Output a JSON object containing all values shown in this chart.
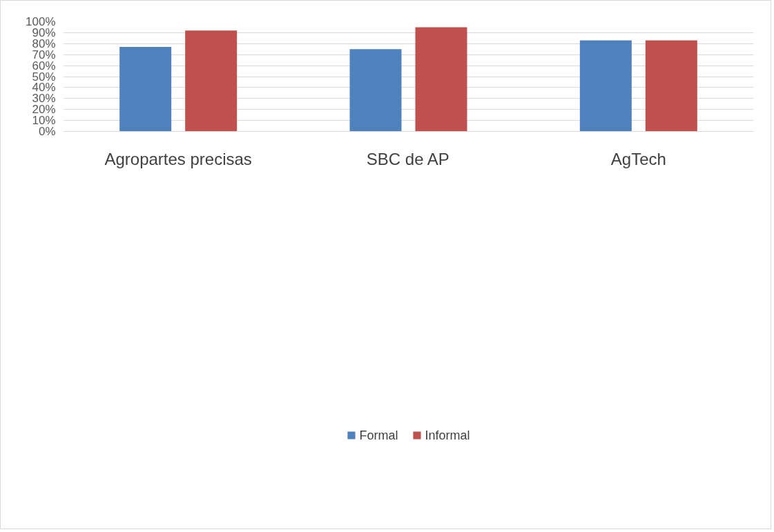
{
  "chart_data": {
    "type": "bar",
    "categories": [
      "Agropartes precisas",
      "SBC de AP",
      "AgTech"
    ],
    "series": [
      {
        "name": "Formal",
        "color": "#4f81bd",
        "values": [
          77,
          75,
          83
        ]
      },
      {
        "name": "Informal",
        "color": "#c0504d",
        "values": [
          92,
          95,
          83
        ]
      }
    ],
    "ylim": [
      0,
      100
    ],
    "yticks": [
      {
        "value": 0,
        "label": "0%"
      },
      {
        "value": 10,
        "label": "10%"
      },
      {
        "value": 20,
        "label": "20%"
      },
      {
        "value": 30,
        "label": "30%"
      },
      {
        "value": 40,
        "label": "40%"
      },
      {
        "value": 50,
        "label": "50%"
      },
      {
        "value": 60,
        "label": "60%"
      },
      {
        "value": 70,
        "label": "70%"
      },
      {
        "value": 80,
        "label": "80%"
      },
      {
        "value": 90,
        "label": "90%"
      },
      {
        "value": 100,
        "label": "100%"
      }
    ],
    "grid": "y",
    "legend": "bottom"
  }
}
